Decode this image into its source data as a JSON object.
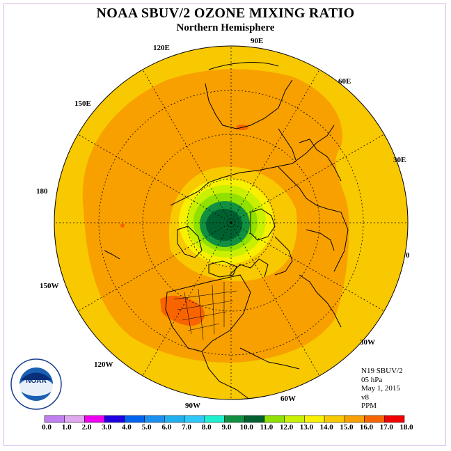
{
  "header": {
    "title": "NOAA SBUV/2 OZONE MIXING RATIO",
    "subtitle": "Northern Hemisphere"
  },
  "longitude_labels": [
    "90E",
    "60E",
    "30E",
    "0",
    "30W",
    "60W",
    "90W",
    "120W",
    "150W",
    "180",
    "150E",
    "120E"
  ],
  "info": {
    "satellite": "N19 SBUV/2",
    "level": "05 hPa",
    "date": "May 1, 2015",
    "version": "v8",
    "units": "PPM"
  },
  "colorbar": {
    "ticks": [
      "0.0",
      "1.0",
      "2.0",
      "3.0",
      "4.0",
      "5.0",
      "6.0",
      "7.0",
      "8.0",
      "9.0",
      "10.0",
      "11.0",
      "12.0",
      "13.0",
      "14.0",
      "15.0",
      "16.0",
      "17.0",
      "18.0"
    ],
    "colors": [
      "#c080f0",
      "#e0a8f0",
      "#f000f0",
      "#2000e0",
      "#0064f0",
      "#1a90f0",
      "#20b0f0",
      "#30c8f8",
      "#20f0d0",
      "#109040",
      "#006030",
      "#90e000",
      "#c8f000",
      "#f8f000",
      "#f8c800",
      "#f8a000",
      "#f86400",
      "#f00000",
      "#905030"
    ]
  },
  "map_levels": {
    "background_ppm": "13.0-14.0",
    "ring_levels_ppm": [
      "14.0-15.0",
      "13.0-14.0",
      "12.0-13.0",
      "11.0-12.0",
      "10.0-11.0",
      "9.0-10.0"
    ],
    "colors": {
      "yellow_orange": "#f8c800",
      "orange": "#f8a000",
      "red_orange": "#f86400",
      "yellow": "#f8f000",
      "light_yellow_green": "#c8f000",
      "yellow_green": "#90e000",
      "green": "#109040",
      "dark_green": "#006030"
    }
  },
  "logo": {
    "name": "NOAA",
    "ring_text": "NATIONAL OCEANIC AND ATMOSPHERIC ADMINISTRATION · U.S. DEPARTMENT OF COMMERCE"
  }
}
